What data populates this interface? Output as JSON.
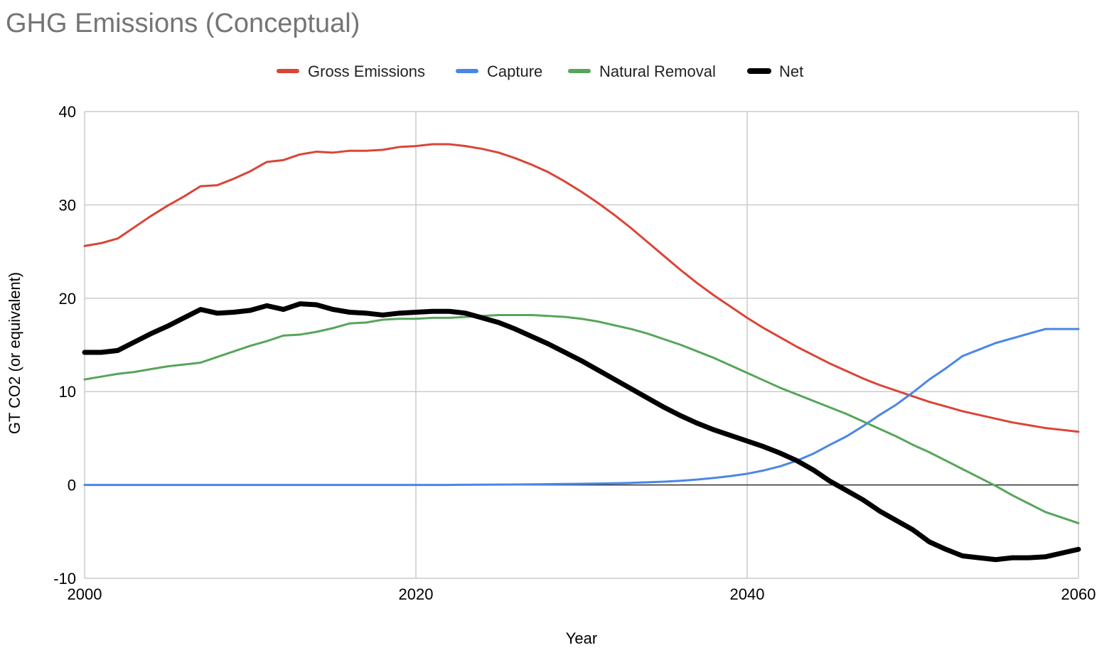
{
  "chart_data": {
    "type": "line",
    "title": "GHG Emissions (Conceptual)",
    "xlabel": "Year",
    "ylabel": "GT CO2 (or equivalent)",
    "xlim": [
      2000,
      2060
    ],
    "ylim": [
      -10,
      40
    ],
    "x_ticks": [
      2000,
      2020,
      2040,
      2060
    ],
    "y_ticks": [
      -10,
      0,
      10,
      20,
      30,
      40
    ],
    "grid": true,
    "legend_position": "top",
    "x": [
      2000,
      2001,
      2002,
      2003,
      2004,
      2005,
      2006,
      2007,
      2008,
      2009,
      2010,
      2011,
      2012,
      2013,
      2014,
      2015,
      2016,
      2017,
      2018,
      2019,
      2020,
      2021,
      2022,
      2023,
      2024,
      2025,
      2026,
      2027,
      2028,
      2029,
      2030,
      2031,
      2032,
      2033,
      2034,
      2035,
      2036,
      2037,
      2038,
      2039,
      2040,
      2041,
      2042,
      2043,
      2044,
      2045,
      2046,
      2047,
      2048,
      2049,
      2050,
      2051,
      2052,
      2053,
      2054,
      2055,
      2056,
      2057,
      2058,
      2059,
      2060
    ],
    "series": [
      {
        "name": "Gross Emissions",
        "color": "#db4437",
        "width": 3,
        "values": [
          25.6,
          25.9,
          26.4,
          27.6,
          28.8,
          29.9,
          30.9,
          32.0,
          32.1,
          32.8,
          33.6,
          34.6,
          34.8,
          35.4,
          35.7,
          35.6,
          35.8,
          35.8,
          35.9,
          36.2,
          36.3,
          36.5,
          36.5,
          36.3,
          36.0,
          35.6,
          35.0,
          34.3,
          33.5,
          32.5,
          31.4,
          30.2,
          28.9,
          27.5,
          26.0,
          24.5,
          23.0,
          21.6,
          20.3,
          19.1,
          17.9,
          16.8,
          15.8,
          14.8,
          13.9,
          13.0,
          12.2,
          11.4,
          10.7,
          10.1,
          9.5,
          8.9,
          8.4,
          7.9,
          7.5,
          7.1,
          6.7,
          6.4,
          6.1,
          5.9,
          5.7
        ]
      },
      {
        "name": "Capture",
        "color": "#4a86e8",
        "width": 3,
        "values": [
          0,
          0,
          0,
          0,
          0,
          0,
          0,
          0,
          0,
          0,
          0,
          0,
          0,
          0,
          0,
          0,
          0,
          0,
          0,
          0,
          0,
          0,
          0,
          0.02,
          0.03,
          0.04,
          0.05,
          0.06,
          0.08,
          0.1,
          0.12,
          0.15,
          0.18,
          0.22,
          0.28,
          0.35,
          0.45,
          0.58,
          0.75,
          0.95,
          1.2,
          1.55,
          2.0,
          2.6,
          3.35,
          4.3,
          5.2,
          6.3,
          7.5,
          8.6,
          9.9,
          11.3,
          12.5,
          13.8,
          14.5,
          15.2,
          15.7,
          16.2,
          16.7,
          16.7,
          16.7
        ]
      },
      {
        "name": "Natural Removal",
        "color": "#57a55a",
        "width": 3,
        "values": [
          11.3,
          11.6,
          11.9,
          12.1,
          12.4,
          12.7,
          12.9,
          13.1,
          13.7,
          14.3,
          14.9,
          15.4,
          16.0,
          16.1,
          16.4,
          16.8,
          17.3,
          17.4,
          17.7,
          17.8,
          17.8,
          17.9,
          17.9,
          18.0,
          18.1,
          18.2,
          18.2,
          18.2,
          18.1,
          18.0,
          17.8,
          17.5,
          17.1,
          16.7,
          16.2,
          15.6,
          15.0,
          14.3,
          13.6,
          12.8,
          12.0,
          11.2,
          10.4,
          9.7,
          9.0,
          8.3,
          7.6,
          6.8,
          6.0,
          5.2,
          4.3,
          3.5,
          2.6,
          1.7,
          0.8,
          -0.1,
          -1.1,
          -2.0,
          -2.9,
          -3.5,
          -4.1
        ]
      },
      {
        "name": "Net",
        "color": "#000000",
        "width": 7,
        "values": [
          14.2,
          14.2,
          14.4,
          15.3,
          16.2,
          17.0,
          17.9,
          18.8,
          18.4,
          18.5,
          18.7,
          19.2,
          18.8,
          19.4,
          19.3,
          18.8,
          18.5,
          18.4,
          18.2,
          18.4,
          18.5,
          18.6,
          18.6,
          18.4,
          17.9,
          17.4,
          16.7,
          15.9,
          15.1,
          14.2,
          13.3,
          12.3,
          11.3,
          10.3,
          9.3,
          8.3,
          7.4,
          6.6,
          5.9,
          5.3,
          4.7,
          4.1,
          3.4,
          2.6,
          1.6,
          0.4,
          -0.6,
          -1.6,
          -2.8,
          -3.8,
          -4.8,
          -6.1,
          -6.9,
          -7.6,
          -7.8,
          -8.0,
          -7.8,
          -7.8,
          -7.7,
          -7.3,
          -6.9
        ]
      }
    ]
  }
}
